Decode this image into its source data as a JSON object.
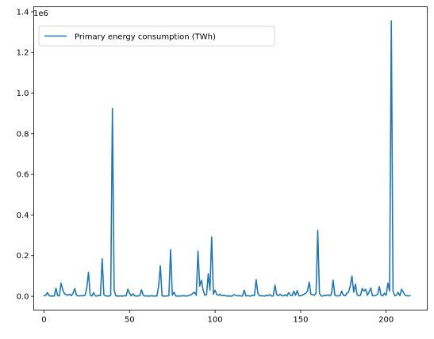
{
  "chart_data": {
    "type": "line",
    "title": "",
    "xlabel": "",
    "ylabel": "",
    "xlim": [
      -6,
      224
    ],
    "ylim": [
      -68000,
      1425000
    ],
    "x_ticks": [
      0,
      50,
      100,
      150,
      200
    ],
    "x_tick_labels": [
      "0",
      "50",
      "100",
      "150",
      "200"
    ],
    "y_ticks": [
      0,
      200000,
      400000,
      600000,
      800000,
      1000000,
      1200000,
      1400000
    ],
    "y_tick_labels": [
      "0.0",
      "0.2",
      "0.4",
      "0.6",
      "0.8",
      "1.0",
      "1.2",
      "1.4"
    ],
    "y_offset_label": "1e6",
    "grid": false,
    "legend_position": "upper-left",
    "series": [
      {
        "name": "Primary energy consumption (TWh)",
        "color": "#1f77b4",
        "x": [
          0,
          1,
          2,
          3,
          4,
          5,
          6,
          7,
          8,
          9,
          10,
          11,
          12,
          13,
          14,
          15,
          16,
          17,
          18,
          19,
          20,
          21,
          22,
          23,
          24,
          25,
          26,
          27,
          28,
          29,
          30,
          31,
          32,
          33,
          34,
          35,
          36,
          37,
          38,
          39,
          40,
          41,
          42,
          43,
          44,
          45,
          46,
          47,
          48,
          49,
          50,
          51,
          52,
          53,
          54,
          55,
          56,
          57,
          58,
          59,
          60,
          61,
          62,
          63,
          64,
          65,
          66,
          67,
          68,
          69,
          70,
          71,
          72,
          73,
          74,
          75,
          76,
          77,
          78,
          79,
          80,
          81,
          82,
          83,
          84,
          85,
          86,
          87,
          88,
          89,
          90,
          91,
          92,
          93,
          94,
          95,
          96,
          97,
          98,
          99,
          100,
          101,
          102,
          103,
          104,
          105,
          106,
          107,
          108,
          109,
          110,
          111,
          112,
          113,
          114,
          115,
          116,
          117,
          118,
          119,
          120,
          121,
          122,
          123,
          124,
          125,
          126,
          127,
          128,
          129,
          130,
          131,
          132,
          133,
          134,
          135,
          136,
          137,
          138,
          139,
          140,
          141,
          142,
          143,
          144,
          145,
          146,
          147,
          148,
          149,
          150,
          151,
          152,
          153,
          154,
          155,
          156,
          157,
          158,
          159,
          160,
          161,
          162,
          163,
          164,
          165,
          166,
          167,
          168,
          169,
          170,
          171,
          172,
          173,
          174,
          175,
          176,
          177,
          178,
          179,
          180,
          181,
          182,
          183,
          184,
          185,
          186,
          187,
          188,
          189,
          190,
          191,
          192,
          193,
          194,
          195,
          196,
          197,
          198,
          199,
          200,
          201,
          202,
          203,
          204,
          205,
          206,
          207,
          208,
          209,
          210,
          211,
          212,
          213,
          214
        ],
        "values": [
          2000,
          5000,
          18000,
          3000,
          1000,
          2000,
          1000,
          40000,
          3000,
          2000,
          65000,
          30000,
          12000,
          8000,
          5000,
          10000,
          3000,
          15000,
          38000,
          5000,
          2000,
          2000,
          3000,
          2000,
          5000,
          40000,
          118000,
          5000,
          1000,
          18000,
          2000,
          1000,
          5000,
          3000,
          185000,
          8000,
          2000,
          1000,
          1000,
          5000,
          925000,
          30000,
          2000,
          1000,
          1000,
          2000,
          1000,
          3000,
          2000,
          35000,
          15000,
          2000,
          12000,
          2000,
          1000,
          2000,
          3000,
          32000,
          5000,
          1000,
          2000,
          1000,
          1000,
          3000,
          1000,
          2000,
          1000,
          50000,
          150000,
          2000,
          1000,
          1000,
          2000,
          3000,
          230000,
          5000,
          20000,
          2000,
          1000,
          1000,
          2000,
          2000,
          3000,
          1000,
          2000,
          5000,
          8000,
          15000,
          20000,
          5000,
          222000,
          50000,
          80000,
          30000,
          5000,
          8000,
          110000,
          30000,
          292000,
          10000,
          30000,
          8000,
          5000,
          10000,
          2000,
          5000,
          3000,
          1000,
          2000,
          1000,
          1000,
          8000,
          5000,
          2000,
          3000,
          2000,
          1000,
          30000,
          2000,
          3000,
          2000,
          1000,
          5000,
          3000,
          82000,
          15000,
          2000,
          3000,
          2000,
          1000,
          5000,
          3000,
          8000,
          1000,
          2000,
          55000,
          8000,
          3000,
          10000,
          3000,
          2000,
          8000,
          1000,
          18000,
          5000,
          3000,
          25000,
          5000,
          28000,
          2000,
          3000,
          5000,
          10000,
          15000,
          25000,
          70000,
          10000,
          8000,
          5000,
          15000,
          325000,
          15000,
          2000,
          1000,
          5000,
          3000,
          8000,
          2000,
          10000,
          80000,
          5000,
          2000,
          2000,
          3000,
          25000,
          5000,
          2000,
          15000,
          20000,
          50000,
          100000,
          20000,
          60000,
          8000,
          3000,
          5000,
          38000,
          25000,
          35000,
          5000,
          20000,
          40000,
          3000,
          2000,
          5000,
          10000,
          48000,
          5000,
          2000,
          15000,
          5000,
          65000,
          25000,
          1355000,
          25000,
          3000,
          5000,
          20000,
          3000,
          35000,
          20000,
          5000,
          3000,
          2000,
          3000
        ]
      }
    ]
  }
}
